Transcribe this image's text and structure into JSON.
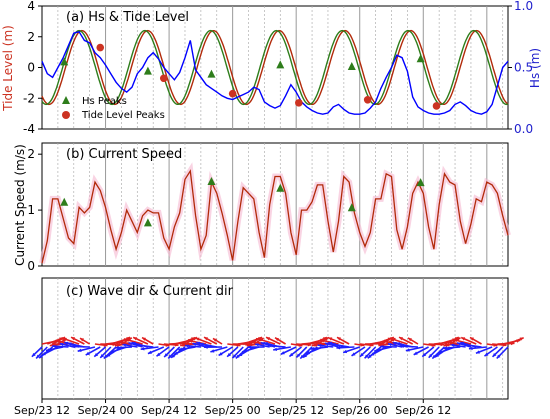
{
  "figure": {
    "x_ticks": [
      "Sep/23 12",
      "Sep/24 00",
      "Sep/24 12",
      "Sep/25 00",
      "Sep/25 12",
      "Sep/26 00",
      "Sep/26 12"
    ],
    "colors": {
      "tide": "#2e7d1b",
      "hs": "#0000ff",
      "tide_shadow": "#e8b6b6",
      "current": "#b22a0a",
      "current_shadow": "#f5b8d0",
      "hs_marker": "#2e7d1b",
      "tide_marker": "#cc3322",
      "wave_arrow": "#1f1fff",
      "current_arrow": "#e02020",
      "grid_major": "#999999",
      "grid_minor": "#b0b0b0",
      "ylabel_tide": "#cc3322",
      "ylabel_hs": "#1f1fcc"
    }
  },
  "chart_data": [
    {
      "panel": "a",
      "type": "line",
      "title": "(a) Hs & Tide Level",
      "ylabel_left": "Tide Level (m)",
      "ylabel_right": "Hs (m)",
      "ylim_left": [
        -4,
        4
      ],
      "yticks_left": [
        "4",
        "2",
        "0",
        "-2",
        "-4"
      ],
      "ylim_right": [
        0,
        1
      ],
      "yticks_right": [
        "1.0",
        "0.5",
        "0.0"
      ],
      "legend": {
        "placement": "bottom-left",
        "entries": [
          "Hs Peaks",
          "Tide Level Peaks"
        ]
      },
      "tide": {
        "amplitude": 2.4,
        "period_hours": 12.42,
        "peak_times_hours": [
          7.0,
          19.4,
          31.8,
          44.2,
          56.6,
          69.0,
          81.4
        ]
      },
      "hs": {
        "x": [
          0,
          1,
          2,
          3,
          4,
          5,
          6,
          7,
          8,
          9,
          10,
          11,
          12,
          13,
          14,
          15,
          16,
          17,
          18,
          19,
          20,
          21,
          22,
          23,
          24,
          25,
          26,
          27,
          28,
          29,
          30,
          31,
          32,
          33,
          34,
          35,
          36,
          37,
          38,
          39,
          40,
          41,
          42,
          43,
          44,
          45,
          46,
          47,
          48,
          49,
          50,
          51,
          52,
          53,
          54,
          55,
          56,
          57,
          58,
          59,
          60,
          61,
          62,
          63,
          64,
          65,
          66,
          67,
          68,
          69,
          70,
          71,
          72,
          73,
          74,
          75,
          76,
          77,
          78,
          79,
          80,
          81,
          82,
          83,
          84,
          85,
          86,
          87,
          88
        ],
        "y": [
          0.55,
          0.45,
          0.42,
          0.5,
          0.58,
          0.68,
          0.78,
          0.79,
          0.72,
          0.7,
          0.62,
          0.58,
          0.52,
          0.45,
          0.38,
          0.33,
          0.3,
          0.34,
          0.45,
          0.5,
          0.58,
          0.62,
          0.57,
          0.5,
          0.45,
          0.4,
          0.46,
          0.58,
          0.72,
          0.48,
          0.42,
          0.36,
          0.33,
          0.3,
          0.27,
          0.25,
          0.24,
          0.26,
          0.28,
          0.3,
          0.34,
          0.32,
          0.22,
          0.19,
          0.17,
          0.19,
          0.27,
          0.36,
          0.3,
          0.22,
          0.18,
          0.15,
          0.13,
          0.12,
          0.13,
          0.18,
          0.2,
          0.16,
          0.13,
          0.12,
          0.12,
          0.13,
          0.17,
          0.22,
          0.33,
          0.42,
          0.5,
          0.6,
          0.58,
          0.47,
          0.26,
          0.18,
          0.15,
          0.13,
          0.12,
          0.12,
          0.13,
          0.15,
          0.2,
          0.22,
          0.19,
          0.15,
          0.13,
          0.12,
          0.14,
          0.2,
          0.35,
          0.5,
          0.55
        ]
      },
      "hs_peaks": [
        {
          "x": 4.2,
          "tide": 0.4
        },
        {
          "x": 20.0,
          "tide": -0.2
        },
        {
          "x": 32.0,
          "tide": -0.4
        },
        {
          "x": 45.0,
          "tide": 0.2
        },
        {
          "x": 58.5,
          "tide": 0.1
        },
        {
          "x": 71.5,
          "tide": 0.6
        }
      ],
      "tide_level_peaks": [
        {
          "x": 11.0,
          "tide": 1.3
        },
        {
          "x": 23.0,
          "tide": -0.7
        },
        {
          "x": 36.0,
          "tide": -1.7
        },
        {
          "x": 48.5,
          "tide": -2.3
        },
        {
          "x": 61.5,
          "tide": -2.1
        },
        {
          "x": 74.5,
          "tide": -2.5
        }
      ]
    },
    {
      "panel": "b",
      "type": "line",
      "title": "(b) Current Speed",
      "ylabel": "Current Speed (m/s)",
      "ylim": [
        0,
        2.2
      ],
      "yticks": [
        "2",
        "1",
        "0"
      ],
      "series": {
        "x": [
          0,
          1,
          2,
          3,
          4,
          5,
          6,
          7,
          8,
          9,
          10,
          11,
          12,
          13,
          14,
          15,
          16,
          17,
          18,
          19,
          20,
          21,
          22,
          23,
          24,
          25,
          26,
          27,
          28,
          29,
          30,
          31,
          32,
          33,
          34,
          35,
          36,
          37,
          38,
          39,
          40,
          41,
          42,
          43,
          44,
          45,
          46,
          47,
          48,
          49,
          50,
          51,
          52,
          53,
          54,
          55,
          56,
          57,
          58,
          59,
          60,
          61,
          62,
          63,
          64,
          65,
          66,
          67,
          68,
          69,
          70,
          71,
          72,
          73,
          74,
          75,
          76,
          77,
          78,
          79,
          80,
          81,
          82,
          83,
          84,
          85,
          86,
          87,
          88
        ],
        "y": [
          0.05,
          0.45,
          1.2,
          1.2,
          0.85,
          0.5,
          0.4,
          1.05,
          0.95,
          1.05,
          1.5,
          1.35,
          1.05,
          0.65,
          0.3,
          0.6,
          1.0,
          0.8,
          0.6,
          0.9,
          1.0,
          0.95,
          0.95,
          0.5,
          0.3,
          0.7,
          0.95,
          1.55,
          1.7,
          0.9,
          0.3,
          0.55,
          1.5,
          1.3,
          0.95,
          0.55,
          0.1,
          0.8,
          1.4,
          1.3,
          1.2,
          0.6,
          0.15,
          1.1,
          1.6,
          1.6,
          1.3,
          0.6,
          0.2,
          1.0,
          1.0,
          1.15,
          1.45,
          1.45,
          0.8,
          0.25,
          0.8,
          1.6,
          1.5,
          0.95,
          0.6,
          0.35,
          0.6,
          1.2,
          1.2,
          1.65,
          1.6,
          0.65,
          0.3,
          0.7,
          1.3,
          1.5,
          1.3,
          0.7,
          0.3,
          1.1,
          1.65,
          1.5,
          1.45,
          0.8,
          0.4,
          0.75,
          1.2,
          1.15,
          1.5,
          1.45,
          1.3,
          0.9,
          0.55
        ]
      },
      "hs_peaks": [
        {
          "x": 4.2,
          "y": 1.15
        },
        {
          "x": 20.0,
          "y": 0.78
        },
        {
          "x": 32.0,
          "y": 1.52
        },
        {
          "x": 45.0,
          "y": 1.4
        },
        {
          "x": 58.5,
          "y": 1.05
        },
        {
          "x": 71.5,
          "y": 1.5
        }
      ]
    },
    {
      "panel": "c",
      "type": "vector",
      "title": "(c) Wave dir & Current dir",
      "series": [
        {
          "name": "Wave dir",
          "times_hours_step": 1.0,
          "count": 89
        },
        {
          "name": "Current dir",
          "times_hours_step": 1.0,
          "count": 89
        }
      ]
    }
  ]
}
